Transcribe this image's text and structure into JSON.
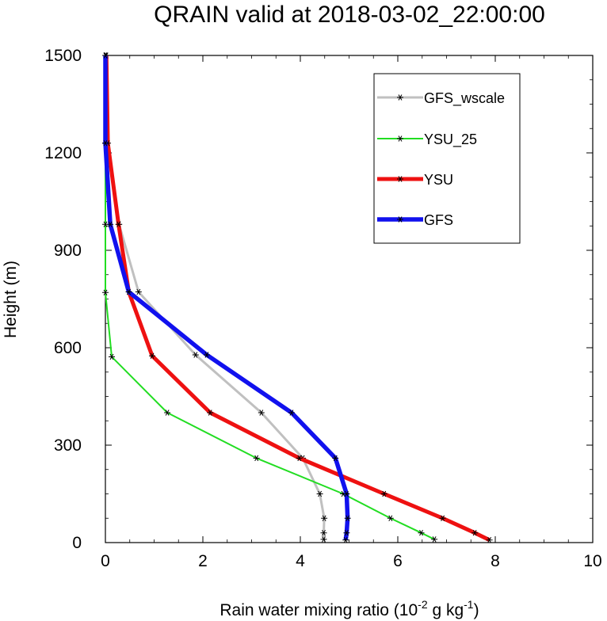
{
  "chart_data": {
    "type": "line",
    "title": "QRAIN valid at 2018-03-02_22:00:00",
    "xlabel": {
      "main": "Rain water mixing ratio (10",
      "sup1": "-2",
      "mid": " g kg",
      "sup2": "-1",
      "end": ")"
    },
    "ylabel": "Height (m)",
    "xlim": [
      0,
      10
    ],
    "ylim": [
      0,
      1500
    ],
    "xticks": [
      0,
      2,
      4,
      6,
      8,
      10
    ],
    "yticks": [
      0,
      300,
      600,
      900,
      1200,
      1500
    ],
    "xtick_labels": [
      "0",
      "2",
      "4",
      "6",
      "8",
      "10"
    ],
    "ytick_labels": [
      "0",
      "300",
      "600",
      "900",
      "1200",
      "1500"
    ],
    "legend_position": "top-right",
    "series": [
      {
        "name": "GFS_wscale",
        "color": "#c0c0c0",
        "points": [
          [
            4.48,
            10
          ],
          [
            4.48,
            30
          ],
          [
            4.49,
            75
          ],
          [
            4.4,
            150
          ],
          [
            4.05,
            260
          ],
          [
            3.2,
            400
          ],
          [
            1.85,
            578
          ],
          [
            0.68,
            772
          ],
          [
            0.28,
            980
          ],
          [
            0.02,
            1230
          ],
          [
            0.0,
            1500
          ]
        ]
      },
      {
        "name": "YSU_25",
        "color": "#22dd22",
        "points": [
          [
            6.75,
            10
          ],
          [
            6.48,
            30
          ],
          [
            5.85,
            75
          ],
          [
            4.88,
            150
          ],
          [
            3.1,
            260
          ],
          [
            1.27,
            400
          ],
          [
            0.13,
            572
          ],
          [
            0.0,
            770
          ],
          [
            0.0,
            980
          ],
          [
            0.0,
            1230
          ],
          [
            0.0,
            1500
          ]
        ]
      },
      {
        "name": "YSU",
        "color": "#ee1111",
        "points": [
          [
            7.88,
            8
          ],
          [
            7.58,
            30
          ],
          [
            6.92,
            75
          ],
          [
            5.72,
            150
          ],
          [
            3.98,
            260
          ],
          [
            2.15,
            400
          ],
          [
            0.96,
            575
          ],
          [
            0.48,
            772
          ],
          [
            0.27,
            980
          ],
          [
            0.05,
            1230
          ],
          [
            0.02,
            1500
          ]
        ]
      },
      {
        "name": "GFS",
        "color": "#1111ee",
        "points": [
          [
            4.93,
            8
          ],
          [
            4.95,
            30
          ],
          [
            4.97,
            75
          ],
          [
            4.95,
            150
          ],
          [
            4.72,
            260
          ],
          [
            3.82,
            400
          ],
          [
            2.08,
            578
          ],
          [
            0.48,
            772
          ],
          [
            0.1,
            980
          ],
          [
            0.0,
            1230
          ],
          [
            0.0,
            1500
          ]
        ]
      }
    ]
  }
}
